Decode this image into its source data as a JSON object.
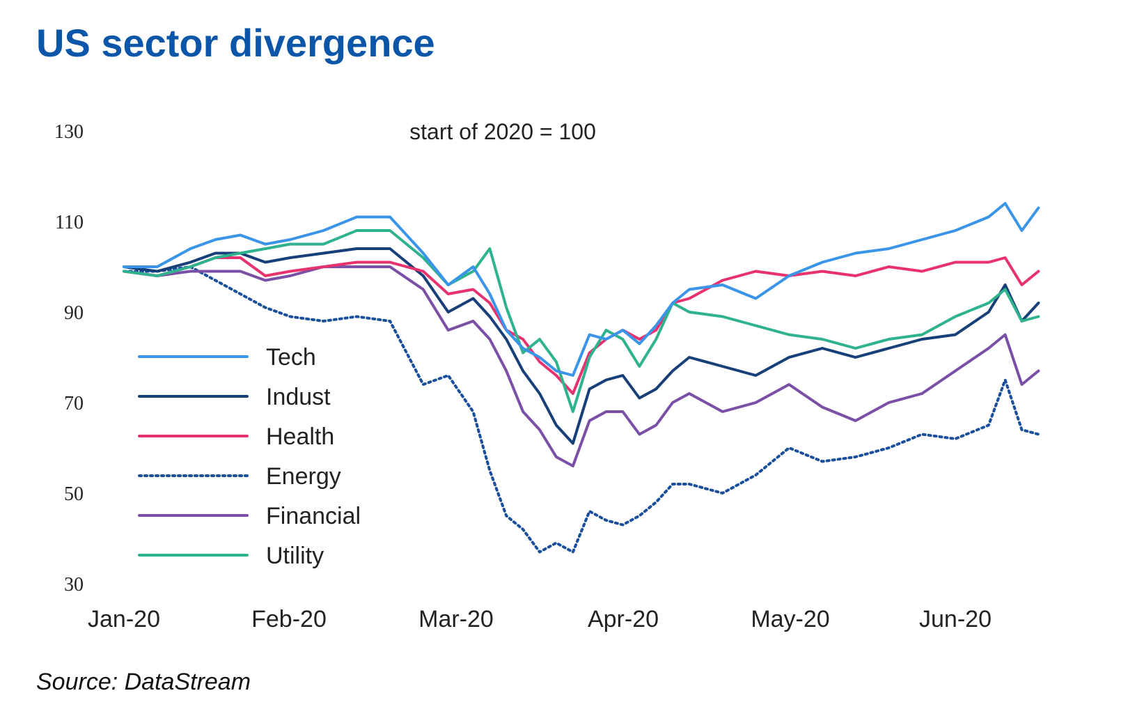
{
  "title": "US sector divergence",
  "source": "Source: DataStream",
  "chart_data": {
    "type": "line",
    "subtitle": "start of 2020 = 100",
    "ylim": [
      30,
      130
    ],
    "yticks": [
      "130",
      "110",
      "90",
      "70",
      "50",
      "30"
    ],
    "x_ticks": [
      "Jan-20",
      "Feb-20",
      "Mar-20",
      "Apr-20",
      "May-20",
      "Jun-20"
    ],
    "legend_position": "left-center",
    "grid": false,
    "series": [
      {
        "name": "Tech",
        "color": "#3a95e8",
        "dash": "solid",
        "x": [
          0,
          0.2,
          0.4,
          0.55,
          0.7,
          0.85,
          1.0,
          1.2,
          1.4,
          1.6,
          1.8,
          1.95,
          2.1,
          2.2,
          2.3,
          2.4,
          2.5,
          2.6,
          2.7,
          2.8,
          2.9,
          3.0,
          3.1,
          3.2,
          3.3,
          3.4,
          3.6,
          3.8,
          4.0,
          4.2,
          4.4,
          4.6,
          4.8,
          5.0,
          5.2,
          5.3,
          5.4,
          5.5
        ],
        "values": [
          100,
          100,
          104,
          106,
          107,
          105,
          106,
          108,
          111,
          111,
          103,
          96,
          100,
          94,
          86,
          82,
          80,
          77,
          76,
          85,
          84,
          86,
          83,
          87,
          92,
          95,
          96,
          93,
          98,
          101,
          103,
          104,
          106,
          108,
          111,
          114,
          108,
          113
        ]
      },
      {
        "name": "Indust",
        "color": "#173f78",
        "dash": "solid",
        "x": [
          0,
          0.2,
          0.4,
          0.55,
          0.7,
          0.85,
          1.0,
          1.2,
          1.4,
          1.6,
          1.8,
          1.95,
          2.1,
          2.2,
          2.3,
          2.4,
          2.5,
          2.6,
          2.7,
          2.8,
          2.9,
          3.0,
          3.1,
          3.2,
          3.3,
          3.4,
          3.6,
          3.8,
          4.0,
          4.2,
          4.4,
          4.6,
          4.8,
          5.0,
          5.2,
          5.3,
          5.4,
          5.5
        ],
        "values": [
          100,
          99,
          101,
          103,
          103,
          101,
          102,
          103,
          104,
          104,
          98,
          90,
          93,
          89,
          84,
          77,
          72,
          65,
          61,
          73,
          75,
          76,
          71,
          73,
          77,
          80,
          78,
          76,
          80,
          82,
          80,
          82,
          84,
          85,
          90,
          96,
          88,
          92
        ]
      },
      {
        "name": "Health",
        "color": "#e8326e",
        "dash": "solid",
        "x": [
          0,
          0.2,
          0.4,
          0.55,
          0.7,
          0.85,
          1.0,
          1.2,
          1.4,
          1.6,
          1.8,
          1.95,
          2.1,
          2.2,
          2.3,
          2.4,
          2.5,
          2.6,
          2.7,
          2.8,
          2.9,
          3.0,
          3.1,
          3.2,
          3.3,
          3.4,
          3.6,
          3.8,
          4.0,
          4.2,
          4.4,
          4.6,
          4.8,
          5.0,
          5.2,
          5.3,
          5.4,
          5.5
        ],
        "values": [
          99,
          98,
          100,
          102,
          102,
          98,
          99,
          100,
          101,
          101,
          99,
          94,
          95,
          92,
          86,
          84,
          79,
          76,
          72,
          81,
          84,
          86,
          84,
          86,
          92,
          93,
          97,
          99,
          98,
          99,
          98,
          100,
          99,
          101,
          101,
          102,
          96,
          99
        ]
      },
      {
        "name": "Energy",
        "color": "#1a4f9c",
        "dash": "dotted",
        "x": [
          0,
          0.2,
          0.4,
          0.55,
          0.7,
          0.85,
          1.0,
          1.2,
          1.4,
          1.6,
          1.8,
          1.95,
          2.1,
          2.2,
          2.3,
          2.4,
          2.5,
          2.6,
          2.7,
          2.8,
          2.9,
          3.0,
          3.1,
          3.2,
          3.3,
          3.4,
          3.6,
          3.8,
          4.0,
          4.2,
          4.4,
          4.6,
          4.8,
          5.0,
          5.2,
          5.3,
          5.4,
          5.5
        ],
        "values": [
          99,
          99,
          100,
          97,
          94,
          91,
          89,
          88,
          89,
          88,
          74,
          76,
          68,
          55,
          45,
          42,
          37,
          39,
          37,
          46,
          44,
          43,
          45,
          48,
          52,
          52,
          50,
          54,
          60,
          57,
          58,
          60,
          63,
          62,
          65,
          75,
          64,
          63
        ]
      },
      {
        "name": "Financial",
        "color": "#7a4fa6",
        "dash": "solid",
        "x": [
          0,
          0.2,
          0.4,
          0.55,
          0.7,
          0.85,
          1.0,
          1.2,
          1.4,
          1.6,
          1.8,
          1.95,
          2.1,
          2.2,
          2.3,
          2.4,
          2.5,
          2.6,
          2.7,
          2.8,
          2.9,
          3.0,
          3.1,
          3.2,
          3.3,
          3.4,
          3.6,
          3.8,
          4.0,
          4.2,
          4.4,
          4.6,
          4.8,
          5.0,
          5.2,
          5.3,
          5.4,
          5.5
        ],
        "values": [
          99,
          98,
          99,
          99,
          99,
          97,
          98,
          100,
          100,
          100,
          95,
          86,
          88,
          84,
          77,
          68,
          64,
          58,
          56,
          66,
          68,
          68,
          63,
          65,
          70,
          72,
          68,
          70,
          74,
          69,
          66,
          70,
          72,
          77,
          82,
          85,
          74,
          77
        ]
      },
      {
        "name": "Utility",
        "color": "#2fb28e",
        "dash": "solid",
        "x": [
          0,
          0.2,
          0.4,
          0.55,
          0.7,
          0.85,
          1.0,
          1.2,
          1.4,
          1.6,
          1.8,
          1.95,
          2.1,
          2.2,
          2.3,
          2.4,
          2.5,
          2.6,
          2.7,
          2.8,
          2.9,
          3.0,
          3.1,
          3.2,
          3.3,
          3.4,
          3.6,
          3.8,
          4.0,
          4.2,
          4.4,
          4.6,
          4.8,
          5.0,
          5.2,
          5.3,
          5.4,
          5.5
        ],
        "values": [
          99,
          98,
          100,
          102,
          103,
          104,
          105,
          105,
          108,
          108,
          102,
          96,
          99,
          104,
          91,
          81,
          84,
          79,
          68,
          80,
          86,
          84,
          78,
          84,
          92,
          90,
          89,
          87,
          85,
          84,
          82,
          84,
          85,
          89,
          92,
          95,
          88,
          89
        ]
      }
    ]
  }
}
